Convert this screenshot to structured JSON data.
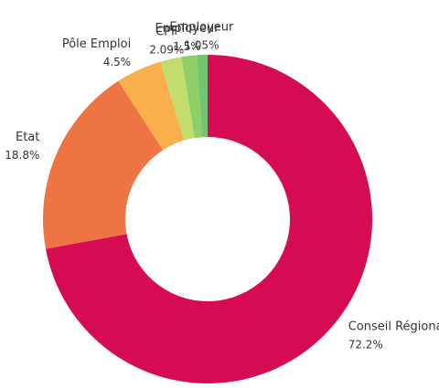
{
  "chart_data": {
    "type": "donut",
    "categories": [
      "Conseil Régional",
      "Etat",
      "Pôle Emploi",
      "CPF",
      "Employeur",
      "Employeur"
    ],
    "values": [
      72.2,
      18.8,
      4.5,
      2.09,
      1.5,
      1.05
    ],
    "value_labels": [
      "72.2%",
      "18.8%",
      "4.5%",
      "2.09%",
      "1.5%",
      "1.05%"
    ],
    "colors": [
      "#d50c53",
      "#ef7443",
      "#fbae4c",
      "#c3dc6d",
      "#8fcf6a",
      "#72c46f"
    ]
  }
}
